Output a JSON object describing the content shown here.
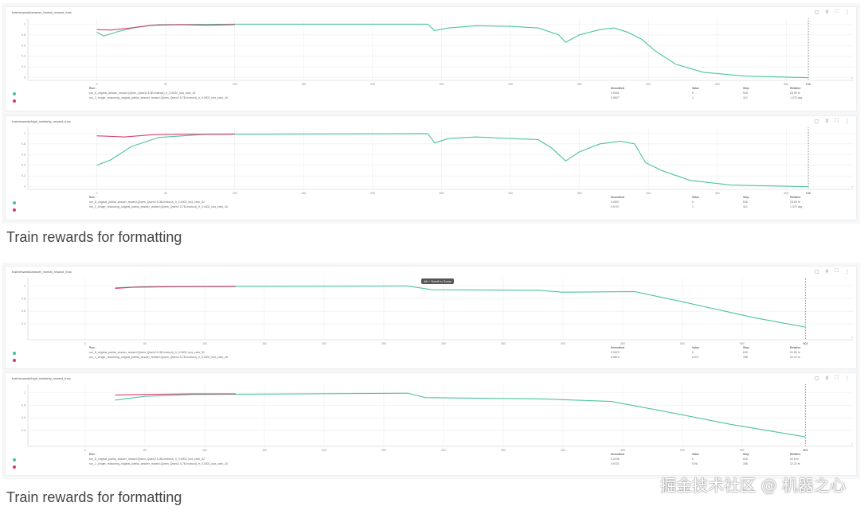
{
  "headings": [
    "Train rewards for formatting",
    "Train rewards for formatting"
  ],
  "watermark": "掘金技术社区 @ 机器之心",
  "colors": {
    "green": "#48c1a0",
    "red": "#d43a6a",
    "grid": "#ececec"
  },
  "icons": [
    "image-icon",
    "pin-icon",
    "fullscreen-icon",
    "more-icon"
  ],
  "legend_header": {
    "run": "Run ↑",
    "smoothed": "Smoothed",
    "value": "Value",
    "step": "Step",
    "relative": "Relative"
  },
  "chart_data": [
    {
      "type": "line",
      "title": "train/rewards/answer_format_reward_func",
      "xlim": [
        -50,
        520
      ],
      "ylim": [
        -0.05,
        1.05
      ],
      "xticks": [
        0,
        50,
        100,
        150,
        200,
        250,
        300,
        350,
        400,
        450,
        500
      ],
      "yticks": [
        0,
        0.2,
        0.4,
        0.6,
        0.8,
        1
      ],
      "marker_step": "516",
      "series": [
        {
          "name": "run_8_original_answer_reward (Qwen_Qwen2.5-3B-Instruct)_lr_0.0002_lora_rank_32",
          "color": "#48c1a0",
          "smoothed": "0.0001",
          "value": "0",
          "step": "516",
          "relative": "23.59 hr",
          "points": [
            [
              0,
              0.85
            ],
            [
              5,
              0.78
            ],
            [
              15,
              0.86
            ],
            [
              30,
              0.95
            ],
            [
              45,
              0.99
            ],
            [
              100,
              1
            ],
            [
              240,
              1
            ],
            [
              245,
              0.88
            ],
            [
              255,
              0.93
            ],
            [
              275,
              0.97
            ],
            [
              300,
              0.96
            ],
            [
              320,
              0.93
            ],
            [
              335,
              0.8
            ],
            [
              340,
              0.66
            ],
            [
              350,
              0.8
            ],
            [
              365,
              0.9
            ],
            [
              375,
              0.93
            ],
            [
              385,
              0.85
            ],
            [
              395,
              0.72
            ],
            [
              405,
              0.5
            ],
            [
              420,
              0.25
            ],
            [
              440,
              0.1
            ],
            [
              470,
              0.03
            ],
            [
              516,
              0
            ]
          ]
        },
        {
          "name": "run_2_longer_reasoning_original_partial_answer_reward (Qwen_Qwen2.5-7B-Instruct)_lr_0.0002_lora_rank_16",
          "color": "#d43a6a",
          "smoothed": "0.9827",
          "value": "1",
          "step": "110",
          "relative": "1.373 day",
          "points": [
            [
              0,
              0.9
            ],
            [
              10,
              0.89
            ],
            [
              25,
              0.93
            ],
            [
              40,
              0.98
            ],
            [
              60,
              0.99
            ],
            [
              80,
              0.98
            ],
            [
              100,
              0.99
            ]
          ]
        }
      ]
    },
    {
      "type": "line",
      "title": "train/rewards/high_similarity_reward_func",
      "xlim": [
        -50,
        520
      ],
      "ylim": [
        -0.05,
        1.05
      ],
      "xticks": [
        0,
        50,
        100,
        150,
        200,
        250,
        300,
        350,
        400,
        450,
        500
      ],
      "yticks": [
        0,
        0.2,
        0.4,
        0.6,
        0.8,
        1
      ],
      "marker_step": "516",
      "series": [
        {
          "name": "run_8_original_partial_answer_reward (Qwen_Qwen2.5-3B-Instruct)_lr_0.0002_lora_rank_32",
          "color": "#48c1a0",
          "smoothed": "0.0007",
          "value": "0",
          "step": "516",
          "relative": "23.59 hr",
          "points": [
            [
              0,
              0.4
            ],
            [
              10,
              0.5
            ],
            [
              25,
              0.75
            ],
            [
              45,
              0.92
            ],
            [
              80,
              0.98
            ],
            [
              240,
              0.99
            ],
            [
              245,
              0.82
            ],
            [
              255,
              0.9
            ],
            [
              275,
              0.93
            ],
            [
              300,
              0.9
            ],
            [
              320,
              0.88
            ],
            [
              330,
              0.72
            ],
            [
              340,
              0.48
            ],
            [
              350,
              0.65
            ],
            [
              365,
              0.8
            ],
            [
              380,
              0.85
            ],
            [
              390,
              0.8
            ],
            [
              398,
              0.45
            ],
            [
              410,
              0.3
            ],
            [
              430,
              0.12
            ],
            [
              460,
              0.03
            ],
            [
              516,
              0
            ]
          ]
        },
        {
          "name": "run_2_longer_reasoning_original_partial_answer_reward (Qwen_Qwen2.5-7B-Instruct)_lr_0.0002_lora_rank_16",
          "color": "#d43a6a",
          "smoothed": "0.9747",
          "value": "1",
          "step": "110",
          "relative": "1.373 day",
          "points": [
            [
              0,
              0.95
            ],
            [
              20,
              0.93
            ],
            [
              40,
              0.97
            ],
            [
              60,
              0.98
            ],
            [
              100,
              0.98
            ]
          ]
        }
      ]
    },
    {
      "type": "line",
      "title": "train/rewards/answer_format_reward_func",
      "xlim": [
        -48,
        610
      ],
      "ylim": [
        0.15,
        1.08
      ],
      "xticks": [
        0,
        50,
        100,
        150,
        200,
        250,
        300,
        350,
        400,
        450,
        500,
        550
      ],
      "yticks": [
        0.4,
        0.6,
        0.8,
        1
      ],
      "marker_step": "603",
      "tooltip": "Alt + Scroll to Zoom",
      "series": [
        {
          "name": "run_8_original_partial_answer_reward (Qwen_Qwen2.5-3B-Instruct)_lr_0.0002_lora_rank_32",
          "color": "#48c1a0",
          "smoothed": "0.3022",
          "value": "0",
          "step": "615",
          "relative": "31.83 hr",
          "points": [
            [
              25,
              0.97
            ],
            [
              50,
              0.99
            ],
            [
              270,
              1
            ],
            [
              290,
              0.94
            ],
            [
              380,
              0.93
            ],
            [
              400,
              0.9
            ],
            [
              460,
              0.91
            ],
            [
              500,
              0.75
            ],
            [
              560,
              0.5
            ],
            [
              603,
              0.35
            ]
          ]
        },
        {
          "name": "run_2_longer_reasoning_original_partial_answer_reward (Qwen_Qwen2.5-7B-Instruct)_lr_0.0002_lora_rank_16",
          "color": "#d43a6a",
          "smoothed": "0.9874",
          "value": "0.971",
          "step": "156",
          "relative": "22.22 hr",
          "points": [
            [
              25,
              0.96
            ],
            [
              40,
              0.98
            ],
            [
              80,
              0.99
            ],
            [
              126,
              0.99
            ]
          ]
        }
      ]
    },
    {
      "type": "line",
      "title": "train/rewards/high_similarity_reward_func",
      "xlim": [
        -48,
        610
      ],
      "ylim": [
        0.15,
        1.08
      ],
      "xticks": [
        0,
        50,
        100,
        150,
        200,
        250,
        300,
        350,
        400,
        450,
        500,
        550
      ],
      "yticks": [
        0.4,
        0.6,
        0.8,
        1
      ],
      "marker_step": "603",
      "series": [
        {
          "name": "run_8_original_partial_answer_reward (Qwen_Qwen2.5-3B-Instruct)_lr_0.0002_lora_rank_32",
          "color": "#48c1a0",
          "smoothed": "0.2136",
          "value": "0",
          "step": "615",
          "relative": "32.8 hr",
          "points": [
            [
              25,
              0.88
            ],
            [
              50,
              0.94
            ],
            [
              90,
              0.97
            ],
            [
              270,
              0.99
            ],
            [
              285,
              0.92
            ],
            [
              380,
              0.9
            ],
            [
              440,
              0.86
            ],
            [
              480,
              0.72
            ],
            [
              540,
              0.5
            ],
            [
              603,
              0.3
            ]
          ]
        },
        {
          "name": "run_2_longer_reasoning_original_partial_answer_reward (Qwen_Qwen2.5-7B-Instruct)_lr_0.0002_lora_rank_16",
          "color": "#d43a6a",
          "smoothed": "0.9721",
          "value": "0.96",
          "step": "156",
          "relative": "22.22 hr",
          "points": [
            [
              25,
              0.96
            ],
            [
              50,
              0.97
            ],
            [
              90,
              0.98
            ],
            [
              126,
              0.98
            ]
          ]
        }
      ]
    }
  ]
}
